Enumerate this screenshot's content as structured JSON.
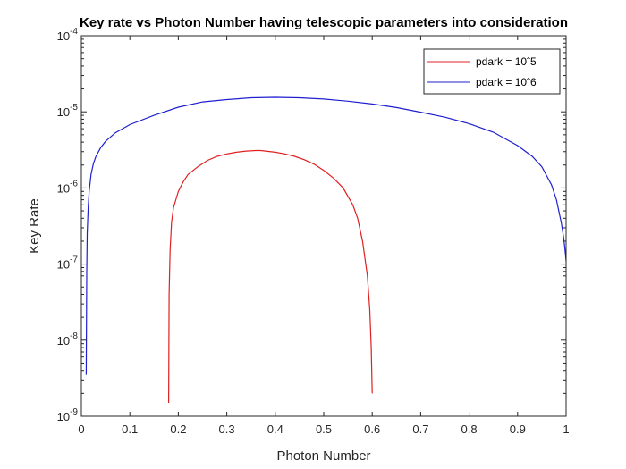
{
  "chart_data": {
    "type": "line",
    "title": "Key rate vs Photon Number having telescopic parameters into consideration",
    "xlabel": "Photon Number",
    "ylabel": "Key Rate",
    "xlim": [
      0,
      1
    ],
    "ylim": [
      1e-09,
      0.0001
    ],
    "yscale": "log",
    "grid": false,
    "legend_location": "top-right",
    "x_ticks": [
      "0",
      "0.1",
      "0.2",
      "0.3",
      "0.4",
      "0.5",
      "0.6",
      "0.7",
      "0.8",
      "0.9",
      "1"
    ],
    "y_ticks": [
      {
        "base": "10",
        "exp": "-9"
      },
      {
        "base": "10",
        "exp": "-8"
      },
      {
        "base": "10",
        "exp": "-7"
      },
      {
        "base": "10",
        "exp": "-6"
      },
      {
        "base": "10",
        "exp": "-5"
      },
      {
        "base": "10",
        "exp": "-4"
      }
    ],
    "series": [
      {
        "name": "pdark = 10ˆ5",
        "color": "#e02020",
        "x": [
          0.18,
          0.181,
          0.183,
          0.186,
          0.19,
          0.2,
          0.21,
          0.22,
          0.24,
          0.26,
          0.28,
          0.3,
          0.32,
          0.34,
          0.36,
          0.37,
          0.38,
          0.4,
          0.42,
          0.44,
          0.46,
          0.48,
          0.5,
          0.52,
          0.54,
          0.56,
          0.57,
          0.58,
          0.59,
          0.595,
          0.598,
          0.6
        ],
        "y": [
          1.5e-09,
          4e-08,
          1.5e-07,
          3.5e-07,
          5.5e-07,
          9e-07,
          1.2e-06,
          1.5e-06,
          1.9e-06,
          2.3e-06,
          2.6e-06,
          2.8e-06,
          2.95e-06,
          3.05e-06,
          3.1e-06,
          3.1e-06,
          3.05e-06,
          2.95e-06,
          2.8e-06,
          2.6e-06,
          2.35e-06,
          2.05e-06,
          1.7e-06,
          1.35e-06,
          1e-06,
          6e-07,
          4e-07,
          2e-07,
          7e-08,
          2.5e-08,
          8e-09,
          2e-09
        ]
      },
      {
        "name": "pdark = 10ˆ6",
        "color": "#1f1fd0",
        "x": [
          0.01,
          0.011,
          0.012,
          0.014,
          0.016,
          0.02,
          0.025,
          0.03,
          0.04,
          0.05,
          0.07,
          0.1,
          0.15,
          0.2,
          0.25,
          0.3,
          0.35,
          0.4,
          0.45,
          0.5,
          0.55,
          0.6,
          0.65,
          0.7,
          0.75,
          0.8,
          0.85,
          0.9,
          0.93,
          0.95,
          0.97,
          0.98,
          0.99,
          0.995,
          0.998,
          1.0
        ],
        "y": [
          3.5e-09,
          8e-08,
          2.5e-07,
          5.5e-07,
          9e-07,
          1.5e-06,
          2.1e-06,
          2.6e-06,
          3.4e-06,
          4.1e-06,
          5.3e-06,
          6.8e-06,
          9e-06,
          1.15e-05,
          1.35e-05,
          1.45e-05,
          1.53e-05,
          1.55e-05,
          1.53e-05,
          1.47e-05,
          1.38e-05,
          1.27e-05,
          1.14e-05,
          9.9e-06,
          8.5e-06,
          7e-06,
          5.4e-06,
          3.6e-06,
          2.6e-06,
          1.9e-06,
          1.1e-06,
          7e-07,
          3.5e-07,
          2.2e-07,
          1.5e-07,
          1.1e-07
        ]
      }
    ]
  }
}
